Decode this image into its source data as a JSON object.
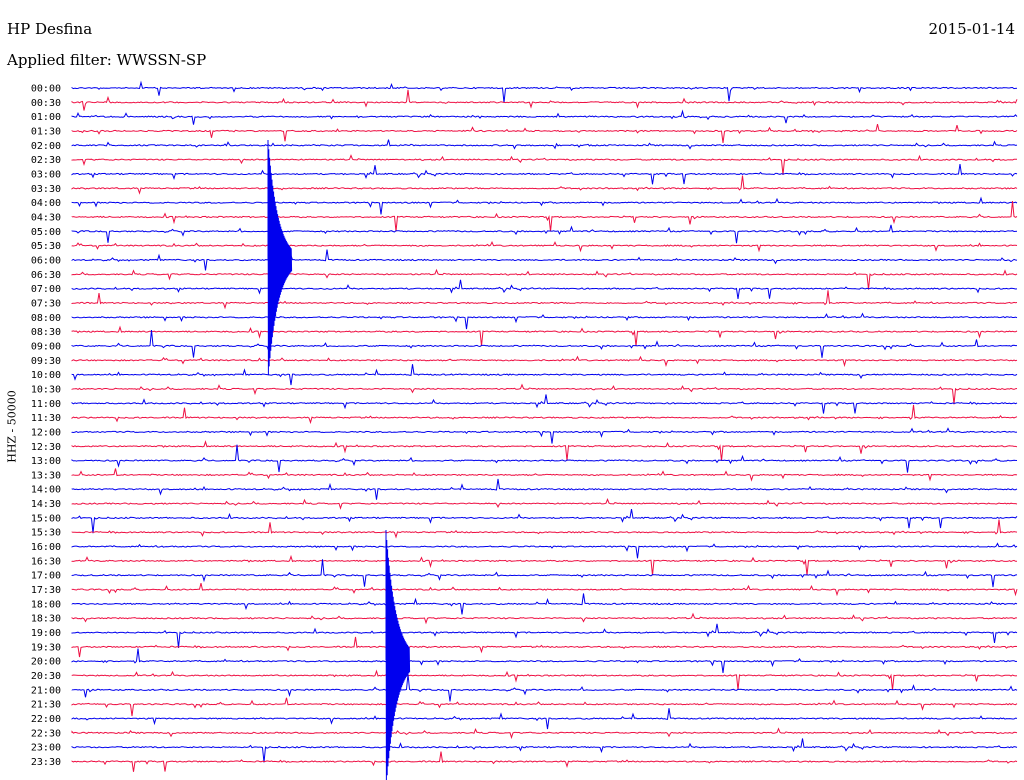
{
  "header": {
    "station": "HP Desfina",
    "date": "2015-01-14",
    "filter": "Applied filter: WWSSN-SP"
  },
  "chart_data": {
    "type": "line",
    "title": "HP Desfina",
    "ylabel": "HHZ - 50000",
    "row_labels": [
      "00:00",
      "00:30",
      "01:00",
      "01:30",
      "02:00",
      "02:30",
      "03:00",
      "03:30",
      "04:00",
      "04:30",
      "05:00",
      "05:30",
      "06:00",
      "06:30",
      "07:00",
      "07:30",
      "08:00",
      "08:30",
      "09:00",
      "09:30",
      "10:00",
      "10:30",
      "11:00",
      "11:30",
      "12:00",
      "12:30",
      "13:00",
      "13:30",
      "14:00",
      "14:30",
      "15:00",
      "15:30",
      "16:00",
      "16:30",
      "17:00",
      "17:30",
      "18:00",
      "18:30",
      "19:00",
      "19:30",
      "20:00",
      "20:30",
      "21:00",
      "21:30",
      "22:00",
      "22:30",
      "23:00",
      "23:30"
    ],
    "colors": [
      "#0000ee",
      "#ee1144"
    ],
    "legend": "none",
    "grid": false
  }
}
